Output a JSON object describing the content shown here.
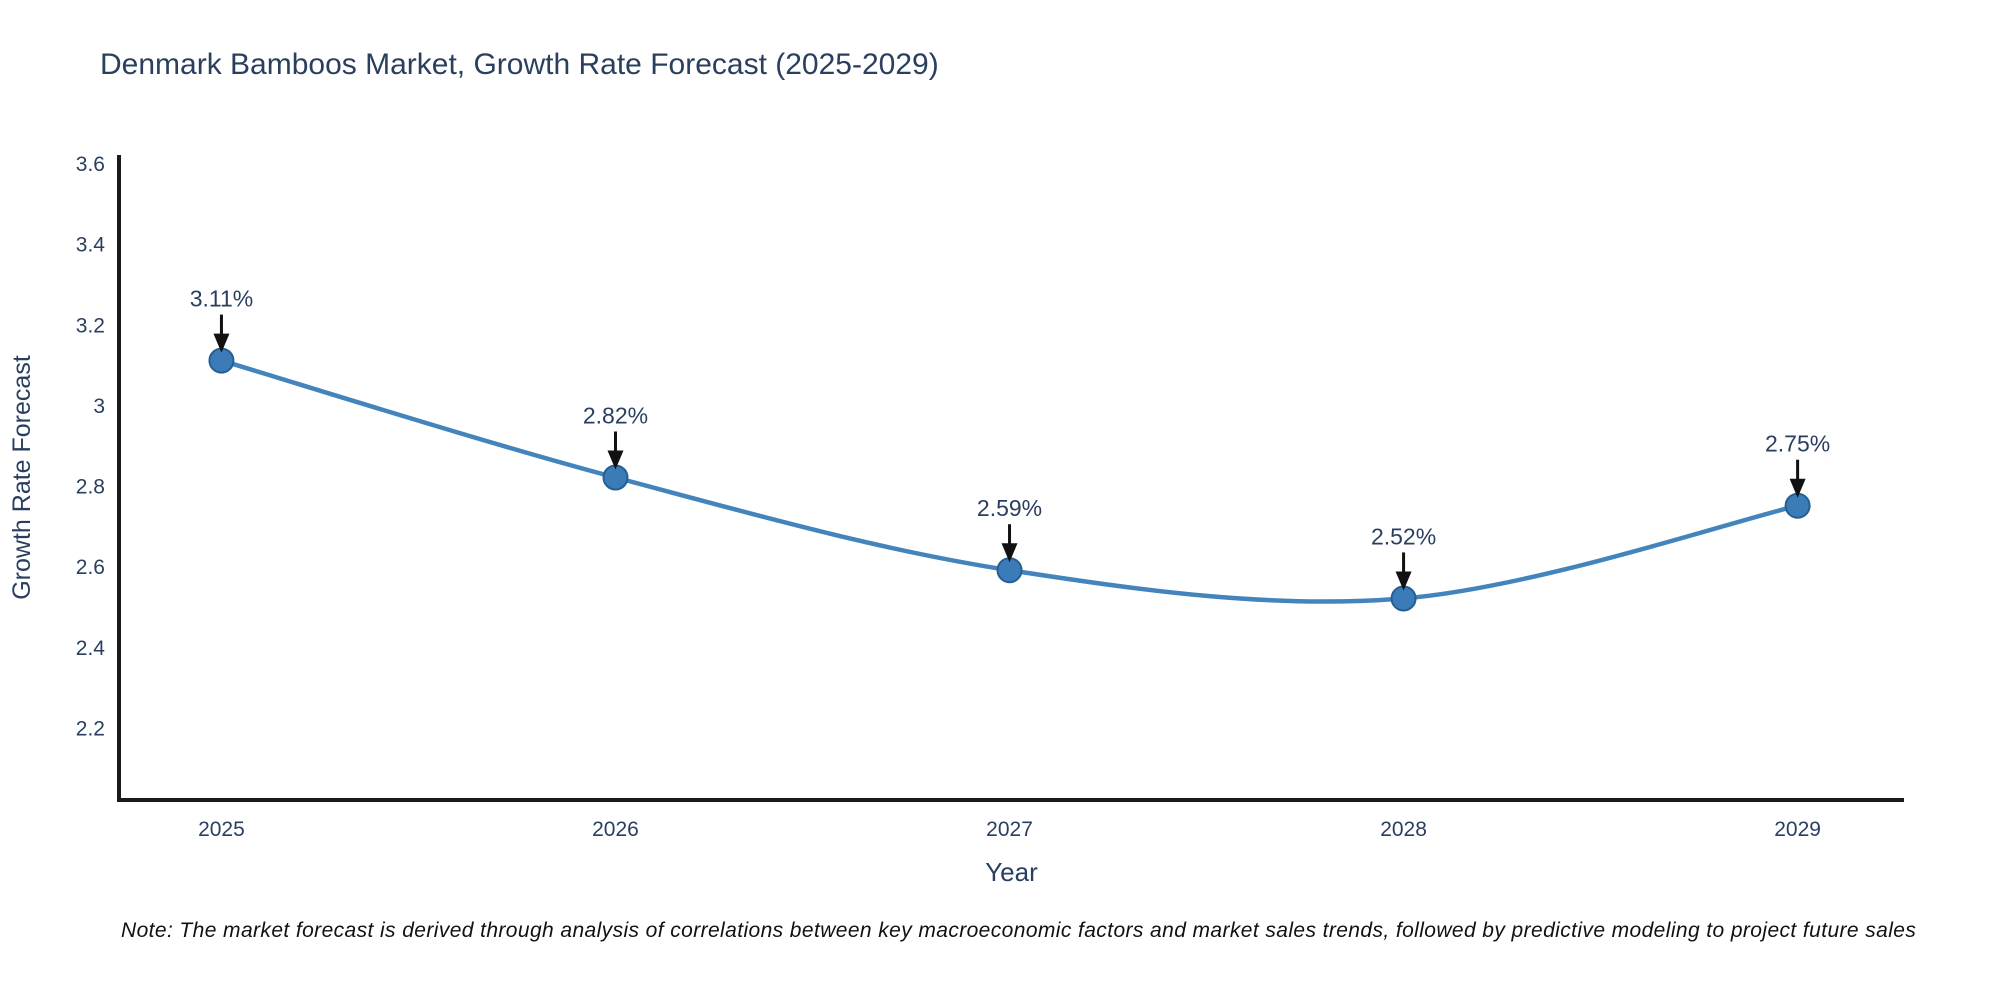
{
  "title": "Denmark Bamboos Market, Growth Rate Forecast (2025-2029)",
  "note": "Note: The market forecast is derived through analysis of correlations between key macroeconomic factors and market sales trends, followed by predictive modeling to project future sales",
  "chart_data": {
    "type": "line",
    "title": "Denmark Bamboos Market, Growth Rate Forecast (2025-2029)",
    "xlabel": "Year",
    "ylabel": "Growth Rate Forecast",
    "x": [
      2025,
      2026,
      2027,
      2028,
      2029
    ],
    "y": [
      3.11,
      2.82,
      2.59,
      2.52,
      2.75
    ],
    "point_labels": [
      "3.11%",
      "2.82%",
      "2.59%",
      "2.52%",
      "2.75%"
    ],
    "x_tick_labels": [
      "2025",
      "2026",
      "2027",
      "2028",
      "2029"
    ],
    "y_ticks": [
      2.2,
      2.4,
      2.6,
      2.8,
      3,
      3.2,
      3.4,
      3.6
    ],
    "y_tick_labels": [
      "2.2",
      "2.4",
      "2.6",
      "2.8",
      "3",
      "3.2",
      "3.4",
      "3.6"
    ],
    "xlim": [
      2024.74,
      2029.27
    ],
    "ylim": [
      2.02,
      3.62
    ],
    "grid": false,
    "legend": "none",
    "line_shape": "spline",
    "marker_style": "circle-with-down-arrow-annotation",
    "colors": {
      "line": "#4484bc",
      "marker": "#3b7cb8",
      "marker_edge": "#255f93",
      "arrow": "#111111",
      "axis": "#1a1a1a",
      "text": "#2a3f5f",
      "title": "#2a3f5f",
      "note": "#111111"
    }
  }
}
